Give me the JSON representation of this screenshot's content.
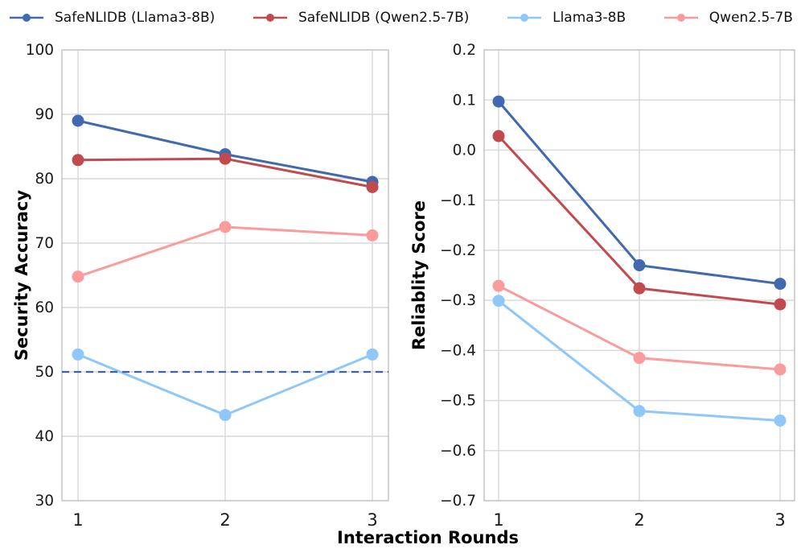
{
  "figure": {
    "xlabel": "Interaction Rounds",
    "background_color": "#ffffff",
    "grid_color": "#d7d7d7",
    "spine_color": "#c9c9c9",
    "tick_text_color": "#1a1a1a"
  },
  "legend": {
    "position": "top",
    "items": [
      {
        "label": "SafeNLIDB (Llama3-8B)",
        "color": "#4169B0",
        "marker": "line-dot-icon"
      },
      {
        "label": "SafeNLIDB (Qwen2.5-7B)",
        "color": "#C04A4E",
        "marker": "line-dot-icon"
      },
      {
        "label": "Llama3-8B",
        "color": "#8FC7F9",
        "marker": "line-dot-icon"
      },
      {
        "label": "Qwen2.5-7B",
        "color": "#F99C9B",
        "marker": "line-dot-icon"
      }
    ]
  },
  "chart_data": [
    {
      "type": "line",
      "title": "",
      "ylabel": "Security Accuracy",
      "xlabel": "Interaction Rounds",
      "x": [
        1,
        2,
        3
      ],
      "xtick_labels": [
        "1",
        "2",
        "3"
      ],
      "ylim": [
        30,
        100
      ],
      "yticks": [
        100,
        90,
        80,
        70,
        60,
        50,
        40,
        30
      ],
      "ytick_labels": [
        "100",
        "90",
        "80",
        "70",
        "60",
        "50",
        "40",
        "30"
      ],
      "grid": true,
      "series": [
        {
          "name": "SafeNLIDB (Llama3-8B)",
          "color": "#4169B0",
          "values": [
            89.0,
            83.8,
            79.5
          ]
        },
        {
          "name": "SafeNLIDB (Qwen2.5-7B)",
          "color": "#C04A4E",
          "values": [
            82.9,
            83.1,
            78.7
          ]
        },
        {
          "name": "Llama3-8B",
          "color": "#8FC7F9",
          "values": [
            52.7,
            43.3,
            52.7
          ]
        },
        {
          "name": "Qwen2.5-7B",
          "color": "#F99C9B",
          "values": [
            64.8,
            72.5,
            71.2
          ]
        }
      ],
      "reference_line": {
        "y": 50,
        "style": "dashed",
        "color": "#3A62B0"
      }
    },
    {
      "type": "line",
      "title": "",
      "ylabel": "Reliablity Score",
      "xlabel": "Interaction Rounds",
      "x": [
        1,
        2,
        3
      ],
      "xtick_labels": [
        "1",
        "2",
        "3"
      ],
      "ylim": [
        -0.7,
        0.2
      ],
      "yticks": [
        0.2,
        0.1,
        0.0,
        -0.1,
        -0.2,
        -0.3,
        -0.4,
        -0.5,
        -0.6,
        -0.7
      ],
      "ytick_labels": [
        "0.2",
        "0.1",
        "0.0",
        "−0.1",
        "−0.2",
        "−0.3",
        "−0.4",
        "−0.5",
        "−0.6",
        "−0.7"
      ],
      "grid": true,
      "series": [
        {
          "name": "SafeNLIDB (Llama3-8B)",
          "color": "#4169B0",
          "values": [
            0.097,
            -0.23,
            -0.267
          ]
        },
        {
          "name": "SafeNLIDB (Qwen2.5-7B)",
          "color": "#C04A4E",
          "values": [
            0.028,
            -0.276,
            -0.308
          ]
        },
        {
          "name": "Llama3-8B",
          "color": "#8FC7F9",
          "values": [
            -0.301,
            -0.521,
            -0.54
          ]
        },
        {
          "name": "Qwen2.5-7B",
          "color": "#F99C9B",
          "values": [
            -0.271,
            -0.415,
            -0.438
          ]
        }
      ]
    }
  ]
}
